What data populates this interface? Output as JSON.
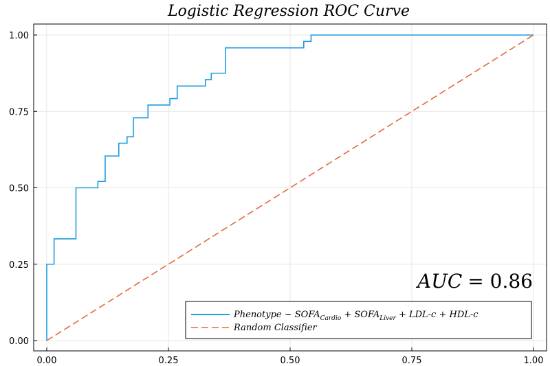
{
  "chart_data": {
    "type": "line",
    "title": "Logistic Regression ROC Curve",
    "xlabel": "",
    "ylabel": "",
    "xlim": [
      0,
      1
    ],
    "ylim": [
      0,
      1
    ],
    "xticks": [
      "0.00",
      "0.25",
      "0.50",
      "0.75",
      "1.00"
    ],
    "yticks": [
      "0.00",
      "0.25",
      "0.50",
      "0.75",
      "1.00"
    ],
    "grid": true,
    "legend_position": "bottom-right",
    "annotation": {
      "prefix": "AUC",
      "value": "= 0.86"
    },
    "series": [
      {
        "name": "Phenotype ~ SOFA_Cardio + SOFA_Liver + LDL-c + HDL-c",
        "legend_parts": {
          "a": "Phenotype ~ SOFA",
          "sub1": "Cardio",
          "b": " + SOFA",
          "sub2": "Liver",
          "c": " + LDL-c + HDL-c"
        },
        "color": "#1f9be0",
        "style": "solid",
        "x": [
          0,
          0,
          0.015,
          0.015,
          0.06,
          0.06,
          0.105,
          0.105,
          0.12,
          0.12,
          0.148,
          0.148,
          0.165,
          0.165,
          0.178,
          0.178,
          0.208,
          0.208,
          0.253,
          0.253,
          0.268,
          0.268,
          0.326,
          0.326,
          0.338,
          0.338,
          0.367,
          0.367,
          0.528,
          0.528,
          0.543,
          0.543,
          1.0
        ],
        "y": [
          0,
          0.25,
          0.25,
          0.333,
          0.333,
          0.5,
          0.5,
          0.521,
          0.521,
          0.604,
          0.604,
          0.646,
          0.646,
          0.667,
          0.667,
          0.729,
          0.729,
          0.771,
          0.771,
          0.792,
          0.792,
          0.833,
          0.833,
          0.854,
          0.854,
          0.875,
          0.875,
          0.958,
          0.958,
          0.979,
          0.979,
          1.0,
          1.0
        ]
      },
      {
        "name": "Random Classifier",
        "color": "#e26a3b",
        "style": "dashed",
        "x": [
          0,
          1
        ],
        "y": [
          0,
          1
        ]
      }
    ]
  }
}
